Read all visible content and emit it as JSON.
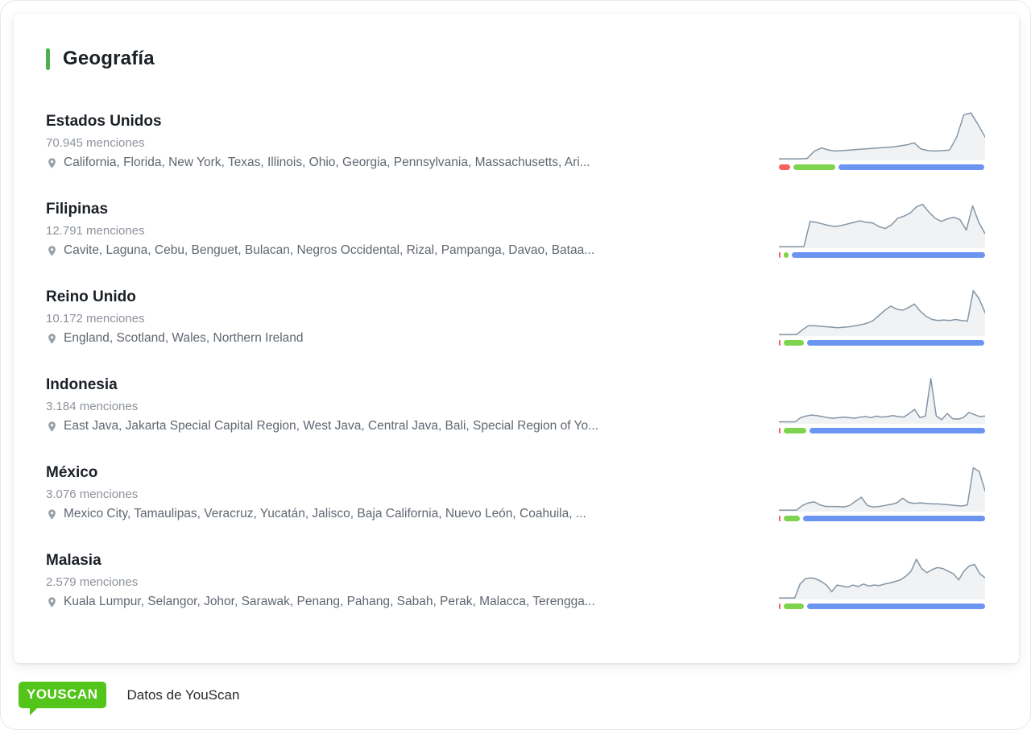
{
  "header": {
    "title": "Geografía"
  },
  "countries": [
    {
      "name": "Estados Unidos",
      "mentions": "70.945 menciones",
      "regions": "California, Florida, New York, Texas, Illinois, Ohio, Georgia, Pennsylvania, Massachusetts, Ari...",
      "sparkline": [
        3,
        3,
        3,
        3,
        4,
        18,
        24,
        20,
        18,
        19,
        20,
        21,
        22,
        23,
        24,
        25,
        26,
        28,
        30,
        34,
        22,
        19,
        18,
        19,
        20,
        45,
        88,
        92,
        70,
        45
      ],
      "sentiment": {
        "negative": 6.5,
        "positive": 21.5,
        "neutral": 72
      }
    },
    {
      "name": "Filipinas",
      "mentions": "12.791 menciones",
      "regions": "Cavite, Laguna, Cebu, Benguet, Bulacan, Negros Occidental, Rizal, Pampanga, Davao, Bataa...",
      "sparkline": [
        3,
        3,
        3,
        3,
        3,
        52,
        50,
        47,
        44,
        42,
        44,
        47,
        50,
        53,
        50,
        49,
        42,
        38,
        45,
        58,
        62,
        68,
        80,
        85,
        70,
        58,
        52,
        57,
        60,
        55,
        35,
        82,
        50,
        28
      ],
      "sentiment": {
        "negative": 1,
        "positive": 3.5,
        "neutral": 95.5
      }
    },
    {
      "name": "Reino Unido",
      "mentions": "10.172 menciones",
      "regions": "England, Scotland, Wales, Northern Ireland",
      "sparkline": [
        3,
        3,
        3,
        3,
        12,
        20,
        20,
        19,
        18,
        17,
        16,
        17,
        18,
        20,
        22,
        25,
        30,
        40,
        50,
        58,
        52,
        50,
        55,
        62,
        48,
        38,
        32,
        30,
        31,
        30,
        32,
        30,
        29,
        88,
        72,
        45
      ],
      "sentiment": {
        "negative": 2,
        "positive": 11,
        "neutral": 87
      }
    },
    {
      "name": "Indonesia",
      "mentions": "3.184 menciones",
      "regions": "East Java, Jakarta Special Capital Region, West Java, Central Java, Bali, Special Region of Yo...",
      "sparkline": [
        4,
        4,
        4,
        4,
        12,
        15,
        17,
        16,
        14,
        12,
        11,
        12,
        13,
        12,
        11,
        13,
        14,
        12,
        15,
        13,
        14,
        16,
        14,
        13,
        20,
        28,
        12,
        15,
        88,
        15,
        8,
        20,
        10,
        9,
        12,
        22,
        18,
        14,
        15
      ],
      "sentiment": {
        "negative": 0.8,
        "positive": 12,
        "neutral": 87.2
      }
    },
    {
      "name": "México",
      "mentions": "3.076 menciones",
      "regions": "Mexico City, Tamaulipas, Veracruz, Yucatán, Jalisco, Baja California, Nuevo León, Coahuila, ...",
      "sparkline": [
        3,
        3,
        3,
        3,
        12,
        17,
        19,
        13,
        10,
        10,
        10,
        9,
        12,
        20,
        28,
        12,
        9,
        10,
        12,
        14,
        17,
        26,
        18,
        16,
        17,
        16,
        15,
        15,
        14,
        13,
        12,
        11,
        13,
        85,
        78,
        40
      ],
      "sentiment": {
        "negative": 1.5,
        "positive": 9,
        "neutral": 89.5
      }
    },
    {
      "name": "Malasia",
      "mentions": "2.579 menciones",
      "regions": "Kuala Lumpur, Selangor, Johor, Sarawak, Penang, Pahang, Sabah, Perak, Malacca, Terengga...",
      "sparkline": [
        3,
        3,
        3,
        3,
        30,
        40,
        42,
        40,
        35,
        28,
        15,
        28,
        26,
        24,
        28,
        25,
        30,
        26,
        28,
        27,
        30,
        32,
        35,
        38,
        45,
        55,
        78,
        60,
        52,
        58,
        62,
        60,
        55,
        50,
        38,
        55,
        65,
        68,
        50,
        42
      ],
      "sentiment": {
        "negative": 1,
        "positive": 11,
        "neutral": 88
      }
    }
  ],
  "footer": {
    "logo_text": "YOUSCAN",
    "caption": "Datos de YouScan"
  },
  "colors": {
    "accent_green": "#4caf50",
    "sentiment_negative": "#f4645c",
    "sentiment_positive": "#7ed34f",
    "sentiment_neutral": "#6c95f2",
    "sparkline_stroke": "#8496a6",
    "sparkline_fill": "#f0f2f4",
    "logo_green": "#52c41a"
  }
}
